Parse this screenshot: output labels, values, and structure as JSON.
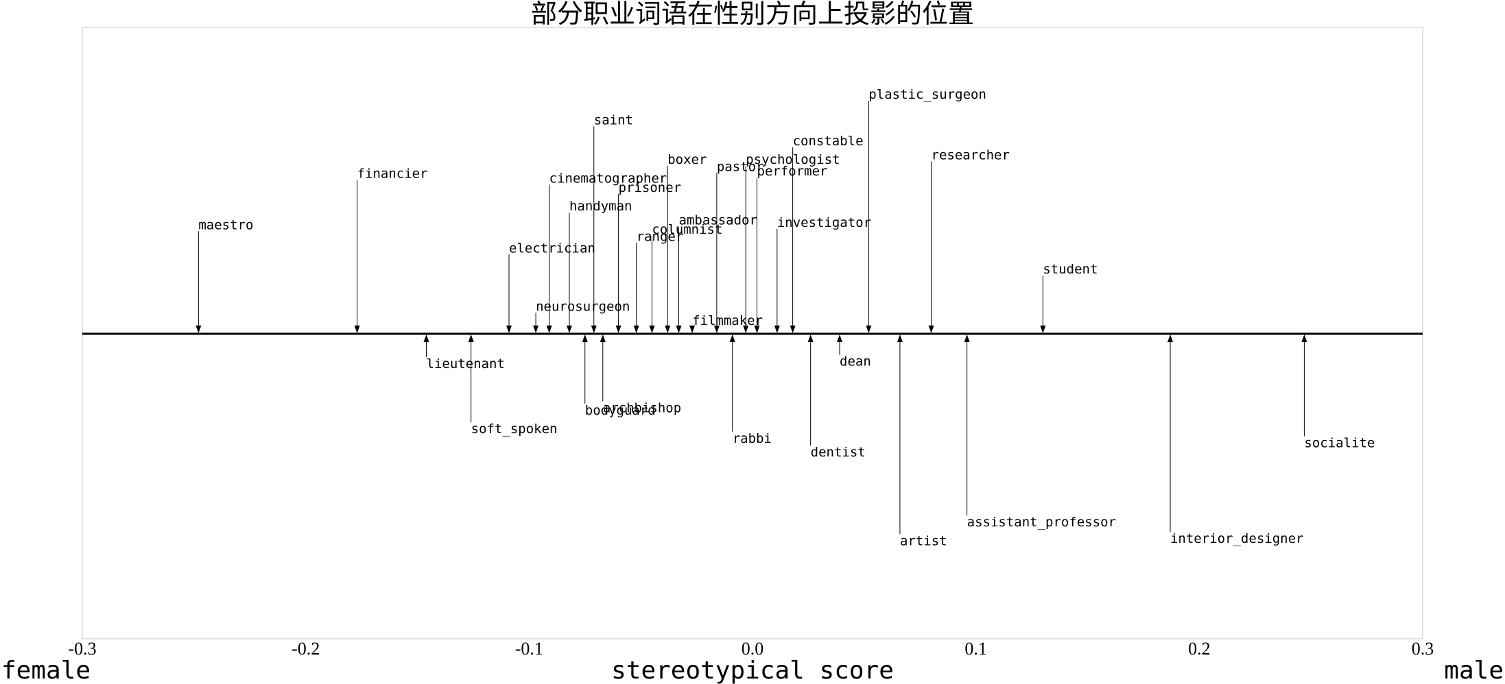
{
  "chart_data": {
    "type": "scatter",
    "title": "部分职业词语在性别方向上投影的位置",
    "xlabel": "stereotypical score",
    "left_label": "female",
    "right_label": "male",
    "xlim": [
      -0.3,
      0.3
    ],
    "xticks": [
      "-0.3",
      "-0.2",
      "-0.1",
      "0.0",
      "0.1",
      "0.2",
      "0.3"
    ],
    "grid": false,
    "colors": {
      "line": "#000000",
      "frame": "#d9d9d9"
    },
    "points": [
      {
        "word": "maestro",
        "x": -0.248,
        "offset": 0.44
      },
      {
        "word": "financier",
        "x": -0.177,
        "offset": 0.66
      },
      {
        "word": "lieutenant",
        "x": -0.146,
        "offset": -0.1
      },
      {
        "word": "soft_spoken",
        "x": -0.126,
        "offset": -0.38
      },
      {
        "word": "electrician",
        "x": -0.109,
        "offset": 0.34
      },
      {
        "word": "neurosurgeon",
        "x": -0.097,
        "offset": 0.09
      },
      {
        "word": "cinematographer",
        "x": -0.091,
        "offset": 0.64
      },
      {
        "word": "handyman",
        "x": -0.082,
        "offset": 0.52
      },
      {
        "word": "bodyguard",
        "x": -0.075,
        "offset": -0.3
      },
      {
        "word": "saint",
        "x": -0.071,
        "offset": 0.89
      },
      {
        "word": "archbishop",
        "x": -0.067,
        "offset": -0.29
      },
      {
        "word": "prisoner",
        "x": -0.06,
        "offset": 0.6
      },
      {
        "word": "ranger",
        "x": -0.052,
        "offset": 0.39
      },
      {
        "word": "columnist",
        "x": -0.045,
        "offset": 0.42
      },
      {
        "word": "boxer",
        "x": -0.038,
        "offset": 0.72
      },
      {
        "word": "ambassador",
        "x": -0.033,
        "offset": 0.46
      },
      {
        "word": "filmmaker",
        "x": -0.027,
        "offset": 0.03
      },
      {
        "word": "pastor",
        "x": -0.016,
        "offset": 0.69
      },
      {
        "word": "rabbi",
        "x": -0.009,
        "offset": -0.42
      },
      {
        "word": "psychologist",
        "x": -0.003,
        "offset": 0.72
      },
      {
        "word": "performer",
        "x": 0.002,
        "offset": 0.67
      },
      {
        "word": "investigator",
        "x": 0.011,
        "offset": 0.45
      },
      {
        "word": "constable",
        "x": 0.018,
        "offset": 0.8
      },
      {
        "word": "dentist",
        "x": 0.026,
        "offset": -0.48
      },
      {
        "word": "dean",
        "x": 0.039,
        "offset": -0.09
      },
      {
        "word": "plastic_surgeon",
        "x": 0.052,
        "offset": 1.0
      },
      {
        "word": "artist",
        "x": 0.066,
        "offset": -0.86
      },
      {
        "word": "researcher",
        "x": 0.08,
        "offset": 0.74
      },
      {
        "word": "assistant_professor",
        "x": 0.096,
        "offset": -0.78
      },
      {
        "word": "student",
        "x": 0.13,
        "offset": 0.25
      },
      {
        "word": "interior_designer",
        "x": 0.187,
        "offset": -0.85
      },
      {
        "word": "socialite",
        "x": 0.247,
        "offset": -0.44
      }
    ]
  }
}
